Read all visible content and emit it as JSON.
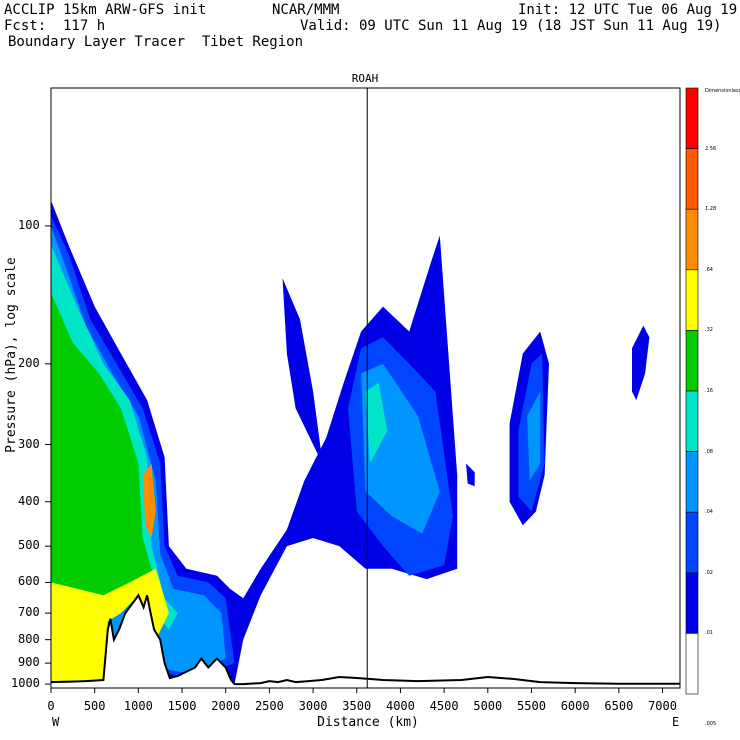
{
  "header": {
    "model": "ACCLIP 15km ARW-GFS init",
    "org": "NCAR/MMM",
    "init": "Init: 12 UTC Tue 06 Aug 19",
    "fcst": "Fcst:  117 h",
    "valid": "Valid: 09 UTC Sun 11 Aug 19 (18 JST Sun 11 Aug 19)",
    "product": "Boundary Layer Tracer  Tibet Region"
  },
  "chart_data": {
    "type": "heatmap",
    "title": "ROAH",
    "xlabel": "Distance (km)",
    "ylabel": "Pressure (hPa), log scale",
    "x_left_label": "W",
    "x_right_label": "E",
    "xlim": [
      0,
      7200
    ],
    "ylim": [
      1020,
      50
    ],
    "y_scale": "log",
    "x_ticks": [
      0,
      500,
      1000,
      1500,
      2000,
      2500,
      3000,
      3500,
      4000,
      4500,
      5000,
      5500,
      6000,
      6500,
      7000
    ],
    "y_ticks": [
      100,
      200,
      300,
      400,
      500,
      600,
      700,
      800,
      900,
      1000
    ],
    "marker_line_km": 3620,
    "colorbar": {
      "levels": [
        "Dimensionless",
        "2.56",
        "1.28",
        ".64",
        ".32",
        ".16",
        ".08",
        ".04",
        ".02",
        ".01",
        ".005"
      ],
      "colors": [
        "#ff0000",
        "#ff5a00",
        "#ff8c00",
        "#ffff00",
        "#00cc00",
        "#00e5c8",
        "#0096ff",
        "#0046ff",
        "#0000e6",
        "#ffffff"
      ]
    },
    "terrain": [
      [
        0,
        990
      ],
      [
        200,
        988
      ],
      [
        400,
        985
      ],
      [
        600,
        980
      ],
      [
        650,
        760
      ],
      [
        680,
        720
      ],
      [
        720,
        800
      ],
      [
        780,
        760
      ],
      [
        850,
        700
      ],
      [
        950,
        660
      ],
      [
        1000,
        640
      ],
      [
        1060,
        680
      ],
      [
        1100,
        640
      ],
      [
        1140,
        700
      ],
      [
        1180,
        760
      ],
      [
        1250,
        800
      ],
      [
        1300,
        900
      ],
      [
        1360,
        970
      ],
      [
        1450,
        960
      ],
      [
        1550,
        940
      ],
      [
        1650,
        920
      ],
      [
        1720,
        880
      ],
      [
        1800,
        920
      ],
      [
        1900,
        880
      ],
      [
        2000,
        920
      ],
      [
        2060,
        980
      ],
      [
        2100,
        1000
      ],
      [
        2200,
        1000
      ],
      [
        2400,
        995
      ],
      [
        2500,
        985
      ],
      [
        2600,
        990
      ],
      [
        2700,
        980
      ],
      [
        2800,
        990
      ],
      [
        2950,
        985
      ],
      [
        3100,
        980
      ],
      [
        3300,
        965
      ],
      [
        3500,
        970
      ],
      [
        3800,
        980
      ],
      [
        4200,
        985
      ],
      [
        4700,
        980
      ],
      [
        5000,
        965
      ],
      [
        5300,
        975
      ],
      [
        5600,
        990
      ],
      [
        6000,
        995
      ],
      [
        6500,
        998
      ],
      [
        7200,
        998
      ]
    ],
    "plumes": [
      {
        "name": "",
        "level": 0,
        "points": [
          [
            0,
            88
          ],
          [
            200,
            110
          ],
          [
            500,
            150
          ],
          [
            800,
            190
          ],
          [
            1100,
            240
          ],
          [
            1300,
            320
          ],
          [
            1350,
            500
          ],
          [
            1550,
            560
          ],
          [
            1900,
            580
          ],
          [
            2050,
            620
          ],
          [
            2200,
            650
          ],
          [
            2400,
            560
          ],
          [
            2700,
            460
          ],
          [
            2900,
            360
          ],
          [
            3150,
            290
          ],
          [
            3350,
            220
          ],
          [
            3550,
            170
          ],
          [
            3800,
            150
          ],
          [
            4100,
            170
          ],
          [
            4350,
            120
          ],
          [
            4450,
            105
          ],
          [
            4650,
            350
          ],
          [
            4650,
            560
          ],
          [
            4300,
            590
          ],
          [
            3900,
            560
          ],
          [
            3600,
            560
          ],
          [
            3300,
            500
          ],
          [
            3000,
            480
          ],
          [
            2700,
            500
          ],
          [
            2400,
            640
          ],
          [
            2200,
            800
          ],
          [
            2100,
            1000
          ],
          [
            1500,
            1000
          ],
          [
            1300,
            950
          ],
          [
            700,
            985
          ],
          [
            0,
            990
          ]
        ]
      },
      {
        "name": "",
        "level": 0,
        "points": [
          [
            2650,
            130
          ],
          [
            2850,
            160
          ],
          [
            3000,
            230
          ],
          [
            3100,
            320
          ],
          [
            3200,
            360
          ],
          [
            3000,
            300
          ],
          [
            2800,
            250
          ],
          [
            2700,
            190
          ]
        ]
      },
      {
        "name": "",
        "level": 0,
        "points": [
          [
            5250,
            270
          ],
          [
            5400,
            190
          ],
          [
            5600,
            170
          ],
          [
            5700,
            200
          ],
          [
            5650,
            350
          ],
          [
            5550,
            420
          ],
          [
            5400,
            450
          ],
          [
            5250,
            400
          ]
        ]
      },
      {
        "name": "",
        "level": 0,
        "points": [
          [
            6650,
            185
          ],
          [
            6780,
            165
          ],
          [
            6850,
            175
          ],
          [
            6800,
            210
          ],
          [
            6700,
            240
          ],
          [
            6650,
            230
          ]
        ]
      },
      {
        "name": "",
        "level": 0,
        "points": [
          [
            4750,
            330
          ],
          [
            4850,
            345
          ],
          [
            4850,
            370
          ],
          [
            4770,
            365
          ]
        ]
      },
      {
        "name": "",
        "level": 1,
        "points": [
          [
            0,
            95
          ],
          [
            200,
            115
          ],
          [
            450,
            160
          ],
          [
            750,
            200
          ],
          [
            1050,
            250
          ],
          [
            1250,
            330
          ],
          [
            1300,
            500
          ],
          [
            1450,
            580
          ],
          [
            1800,
            600
          ],
          [
            2000,
            650
          ],
          [
            2100,
            900
          ],
          [
            1600,
            970
          ],
          [
            1350,
            950
          ],
          [
            700,
            982
          ],
          [
            0,
            985
          ]
        ]
      },
      {
        "name": "",
        "level": 1,
        "points": [
          [
            3400,
            250
          ],
          [
            3550,
            185
          ],
          [
            3800,
            175
          ],
          [
            4100,
            200
          ],
          [
            4400,
            230
          ],
          [
            4600,
            430
          ],
          [
            4500,
            550
          ],
          [
            4100,
            580
          ],
          [
            3800,
            500
          ],
          [
            3500,
            420
          ]
        ]
      },
      {
        "name": "",
        "level": 1,
        "points": [
          [
            5350,
            280
          ],
          [
            5500,
            200
          ],
          [
            5620,
            190
          ],
          [
            5650,
            330
          ],
          [
            5500,
            420
          ],
          [
            5350,
            390
          ]
        ]
      },
      {
        "name": "",
        "level": 2,
        "points": [
          [
            0,
            100
          ],
          [
            150,
            120
          ],
          [
            400,
            165
          ],
          [
            700,
            210
          ],
          [
            1000,
            260
          ],
          [
            1200,
            360
          ],
          [
            1250,
            520
          ],
          [
            1400,
            620
          ],
          [
            1750,
            640
          ],
          [
            1950,
            700
          ],
          [
            2000,
            880
          ],
          [
            1600,
            950
          ],
          [
            1350,
            930
          ],
          [
            700,
            980
          ],
          [
            0,
            982
          ]
        ]
      },
      {
        "name": "",
        "level": 2,
        "points": [
          [
            3550,
            210
          ],
          [
            3800,
            200
          ],
          [
            4200,
            260
          ],
          [
            4450,
            380
          ],
          [
            4250,
            470
          ],
          [
            3900,
            430
          ],
          [
            3600,
            380
          ]
        ]
      },
      {
        "name": "",
        "level": 2,
        "points": [
          [
            5450,
            260
          ],
          [
            5600,
            230
          ],
          [
            5600,
            330
          ],
          [
            5480,
            360
          ]
        ]
      },
      {
        "name": "",
        "level": 3,
        "points": [
          [
            0,
            110
          ],
          [
            300,
            150
          ],
          [
            600,
            200
          ],
          [
            900,
            240
          ],
          [
            1100,
            320
          ],
          [
            1150,
            500
          ],
          [
            1300,
            650
          ],
          [
            1450,
            700
          ],
          [
            1350,
            760
          ],
          [
            1200,
            700
          ],
          [
            1000,
            640
          ],
          [
            600,
            700
          ],
          [
            300,
            780
          ],
          [
            0,
            800
          ]
        ]
      },
      {
        "name": "",
        "level": 3,
        "points": [
          [
            3600,
            230
          ],
          [
            3750,
            220
          ],
          [
            3850,
            280
          ],
          [
            3650,
            330
          ]
        ]
      },
      {
        "name": "",
        "level": 4,
        "points": [
          [
            0,
            140
          ],
          [
            250,
            180
          ],
          [
            550,
            210
          ],
          [
            800,
            250
          ],
          [
            1000,
            330
          ],
          [
            1050,
            480
          ],
          [
            1150,
            560
          ],
          [
            1250,
            630
          ],
          [
            1100,
            620
          ],
          [
            900,
            600
          ],
          [
            600,
            640
          ],
          [
            300,
            620
          ],
          [
            0,
            600
          ]
        ]
      },
      {
        "name": "",
        "level": 5,
        "points": [
          [
            0,
            600
          ],
          [
            300,
            620
          ],
          [
            600,
            640
          ],
          [
            900,
            600
          ],
          [
            1200,
            560
          ],
          [
            1350,
            700
          ],
          [
            1200,
            800
          ],
          [
            1100,
            720
          ],
          [
            1000,
            640
          ],
          [
            800,
            700
          ],
          [
            650,
            730
          ],
          [
            600,
            980
          ],
          [
            0,
            985
          ]
        ]
      },
      {
        "name": "",
        "level": 6,
        "points": [
          [
            1050,
            350
          ],
          [
            1150,
            330
          ],
          [
            1200,
            420
          ],
          [
            1150,
            480
          ],
          [
            1080,
            450
          ]
        ]
      }
    ]
  }
}
